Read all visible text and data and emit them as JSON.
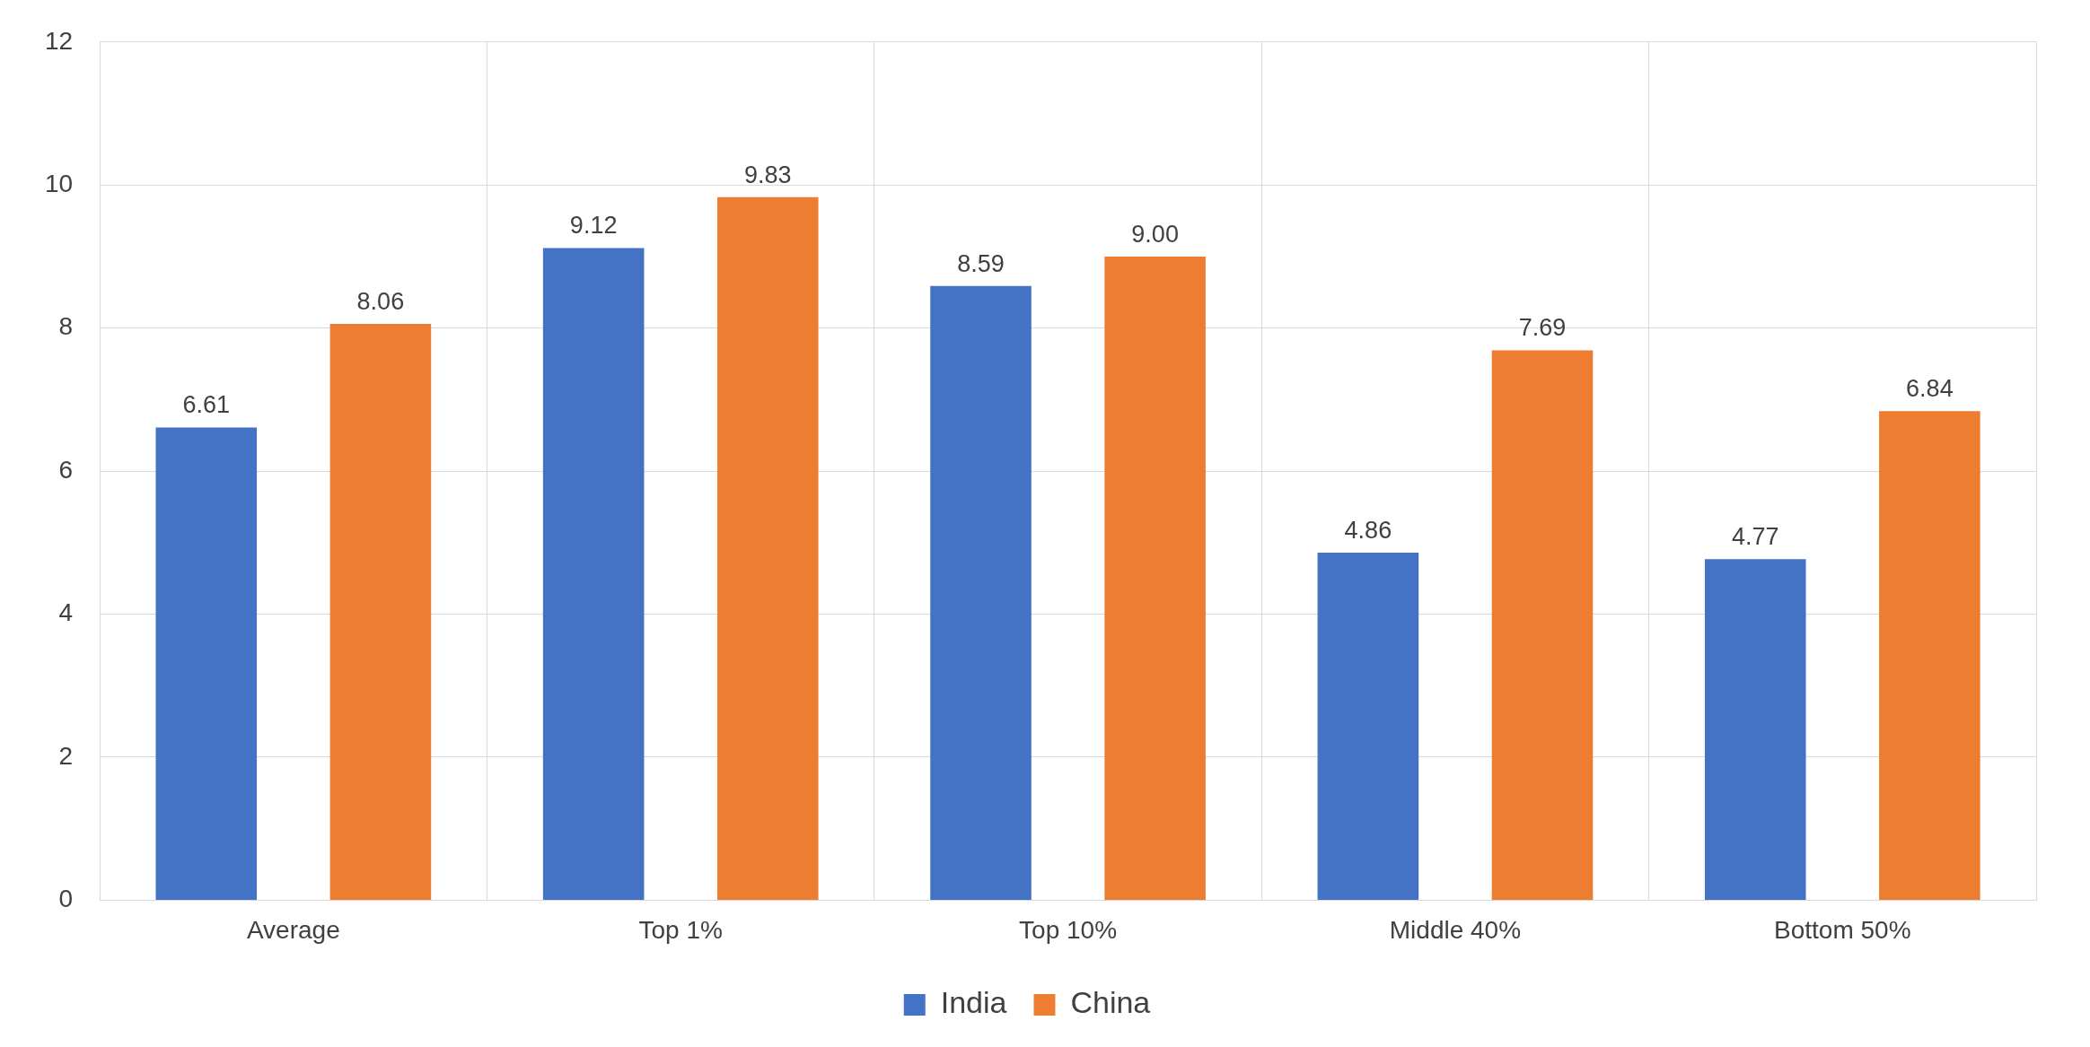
{
  "chart_data": {
    "type": "bar",
    "categories": [
      "Average",
      "Top 1%",
      "Top 10%",
      "Middle 40%",
      "Bottom 50%"
    ],
    "series": [
      {
        "name": "India",
        "color": "#4472c4",
        "values": [
          6.61,
          9.12,
          8.59,
          4.86,
          4.77
        ]
      },
      {
        "name": "China",
        "color": "#ed7d31",
        "values": [
          8.06,
          9.83,
          9.0,
          7.69,
          6.84
        ]
      }
    ],
    "value_labels": [
      [
        "6.61",
        "9.12",
        "8.59",
        "4.86",
        "4.77"
      ],
      [
        "8.06",
        "9.83",
        "9.00",
        "7.69",
        "6.84"
      ]
    ],
    "ylim": [
      0,
      12
    ],
    "yticks": [
      0,
      2,
      4,
      6,
      8,
      10,
      12
    ],
    "grid": true,
    "legend": "bottom"
  }
}
